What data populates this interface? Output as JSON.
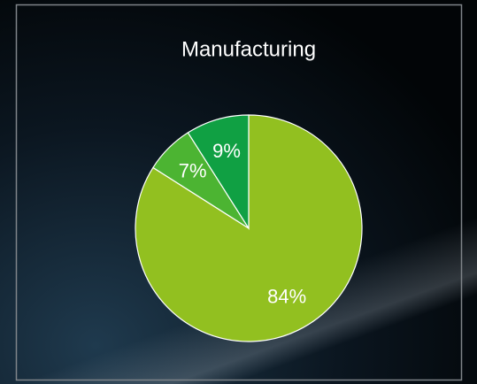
{
  "chart_data": {
    "type": "pie",
    "title": "Manufacturing",
    "values": [
      84,
      7,
      9
    ],
    "value_labels": [
      "84%",
      "7%",
      "9%"
    ],
    "colors": [
      "#92c020",
      "#4cb432",
      "#10a043"
    ]
  }
}
